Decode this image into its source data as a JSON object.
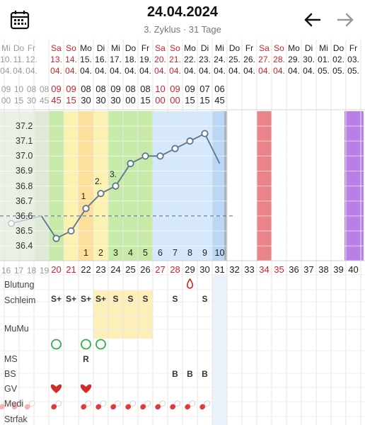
{
  "header": {
    "date": "24.04.2024",
    "subtitle": "3. Zyklus · 31 Tage",
    "calendar_icon": "calendar-icon",
    "back_icon": "arrow-left-icon",
    "forward_icon": "arrow-right-icon"
  },
  "colors": {
    "red": "#d4222a",
    "green": "#c8eaa8",
    "yellow": "#fbf1b0",
    "orange": "#fbdf9a",
    "blue": "#d6e8fb",
    "today": "#bcd6f5",
    "period": "#e9848a",
    "purple": "#b97fe6",
    "line": "#5b7590"
  },
  "ghost_columns": [
    {
      "dow": "Mi",
      "date": "10.",
      "month": "04.",
      "time": "09",
      "min": "00",
      "day": "16"
    },
    {
      "dow": "Do",
      "date": "11.",
      "month": "04.",
      "time": "10",
      "min": "15",
      "day": "17"
    },
    {
      "dow": "Fr",
      "date": "12.",
      "month": "04.",
      "time": "08",
      "min": "30",
      "day": "18"
    },
    {
      "dow": "",
      "date": "",
      "month": "",
      "time": "08",
      "min": "45",
      "day": "19"
    }
  ],
  "days": [
    {
      "dow": "Sa",
      "date": "13.",
      "month": "04.",
      "time": "09",
      "min": "45",
      "day": "20",
      "weekend": true
    },
    {
      "dow": "So",
      "date": "14.",
      "month": "04.",
      "time": "09",
      "min": "15",
      "day": "21",
      "weekend": true
    },
    {
      "dow": "Mo",
      "date": "15.",
      "month": "04.",
      "time": "08",
      "min": "30",
      "day": "22",
      "weekend": false
    },
    {
      "dow": "Di",
      "date": "16.",
      "month": "04.",
      "time": "08",
      "min": "30",
      "day": "23",
      "weekend": false
    },
    {
      "dow": "Mi",
      "date": "17.",
      "month": "04.",
      "time": "09",
      "min": "30",
      "day": "24",
      "weekend": false
    },
    {
      "dow": "Do",
      "date": "18.",
      "month": "04.",
      "time": "08",
      "min": "00",
      "day": "25",
      "weekend": false
    },
    {
      "dow": "Fr",
      "date": "19.",
      "month": "04.",
      "time": "08",
      "min": "15",
      "day": "26",
      "weekend": false
    },
    {
      "dow": "Sa",
      "date": "20.",
      "month": "04.",
      "time": "10",
      "min": "00",
      "day": "27",
      "weekend": true
    },
    {
      "dow": "So",
      "date": "21.",
      "month": "04.",
      "time": "09",
      "min": "00",
      "day": "28",
      "weekend": true
    },
    {
      "dow": "Mo",
      "date": "22.",
      "month": "04.",
      "time": "09",
      "min": "15",
      "day": "29",
      "weekend": false
    },
    {
      "dow": "Di",
      "date": "23.",
      "month": "04.",
      "time": "07",
      "min": "15",
      "day": "30",
      "weekend": false
    },
    {
      "dow": "Mi",
      "date": "24.",
      "month": "04.",
      "time": "06",
      "min": "45",
      "day": "31",
      "weekend": false
    },
    {
      "dow": "Do",
      "date": "25.",
      "month": "04.",
      "time": "",
      "min": "",
      "day": "32",
      "weekend": false
    },
    {
      "dow": "Fr",
      "date": "26.",
      "month": "04.",
      "time": "",
      "min": "",
      "day": "33",
      "weekend": false
    },
    {
      "dow": "Sa",
      "date": "27.",
      "month": "04.",
      "time": "",
      "min": "",
      "day": "34",
      "weekend": true
    },
    {
      "dow": "So",
      "date": "28.",
      "month": "04.",
      "time": "",
      "min": "",
      "day": "35",
      "weekend": true
    },
    {
      "dow": "Mo",
      "date": "29.",
      "month": "04.",
      "time": "",
      "min": "",
      "day": "36",
      "weekend": false
    },
    {
      "dow": "Di",
      "date": "30.",
      "month": "04.",
      "time": "",
      "min": "",
      "day": "37",
      "weekend": false
    },
    {
      "dow": "Mi",
      "date": "01.",
      "month": "05.",
      "time": "",
      "min": "",
      "day": "38",
      "weekend": false
    },
    {
      "dow": "Do",
      "date": "02.",
      "month": "05.",
      "time": "",
      "min": "",
      "day": "39",
      "weekend": false
    },
    {
      "dow": "Fr",
      "date": "03.",
      "month": "05.",
      "time": "",
      "min": "",
      "day": "40",
      "weekend": false
    }
  ],
  "temp_axis": [
    "37.2",
    "37.1",
    "37.0",
    "36.9",
    "36.8",
    "36.7",
    "36.6",
    "36.5",
    "36.4"
  ],
  "chart_data": {
    "type": "line",
    "x_days": [
      19,
      20,
      21,
      22,
      23,
      24,
      25,
      26,
      27,
      28,
      29,
      30,
      31
    ],
    "values": [
      36.6,
      36.45,
      36.5,
      36.65,
      36.75,
      36.8,
      36.95,
      37.0,
      37.0,
      37.05,
      37.1,
      37.15,
      36.95
    ],
    "coverline": 36.6,
    "ylim": [
      36.35,
      37.25
    ],
    "point_labels": [
      {
        "day": 22,
        "text": "1"
      },
      {
        "day": 23,
        "text": "2."
      },
      {
        "day": 24,
        "text": "3."
      }
    ],
    "post_ovulation_numbers": [
      {
        "day": 22,
        "n": "1"
      },
      {
        "day": 23,
        "n": "2"
      },
      {
        "day": 24,
        "n": "3"
      },
      {
        "day": 25,
        "n": "4"
      },
      {
        "day": 26,
        "n": "5"
      },
      {
        "day": 27,
        "n": "6"
      },
      {
        "day": 28,
        "n": "7"
      },
      {
        "day": 29,
        "n": "8"
      },
      {
        "day": 30,
        "n": "9"
      },
      {
        "day": 31,
        "n": "10"
      }
    ]
  },
  "rows": {
    "blutung": "Blutung",
    "schleim": "Schleim",
    "mumu": "MuMu",
    "ms": "MS",
    "bs": "BS",
    "gv": "GV",
    "medi": "Medi",
    "strfak": "Strfak"
  },
  "schleim_marks": [
    {
      "day": 20,
      "text": "S+"
    },
    {
      "day": 21,
      "text": "S+"
    },
    {
      "day": 22,
      "text": "S+"
    },
    {
      "day": 23,
      "text": "S+"
    },
    {
      "day": 24,
      "text": "S"
    },
    {
      "day": 25,
      "text": "S"
    },
    {
      "day": 26,
      "text": "S"
    },
    {
      "day": 28,
      "text": "S"
    },
    {
      "day": 30,
      "text": "S"
    }
  ],
  "ms_marks": [
    {
      "day": 22,
      "text": "R"
    }
  ],
  "bs_marks": [
    {
      "day": 28,
      "text": "B"
    },
    {
      "day": 29,
      "text": "B"
    },
    {
      "day": 30,
      "text": "B"
    }
  ],
  "blutung_marks": [
    {
      "day": 29,
      "icon": "droplet-icon"
    }
  ],
  "mumu_marks": [
    {
      "day": 20
    },
    {
      "day": 22
    },
    {
      "day": 23
    }
  ],
  "gv_marks": [
    {
      "day": 20
    },
    {
      "day": 22
    }
  ],
  "medi_days": [
    19,
    20,
    22,
    23,
    24,
    25,
    26,
    27,
    28,
    29,
    30
  ]
}
